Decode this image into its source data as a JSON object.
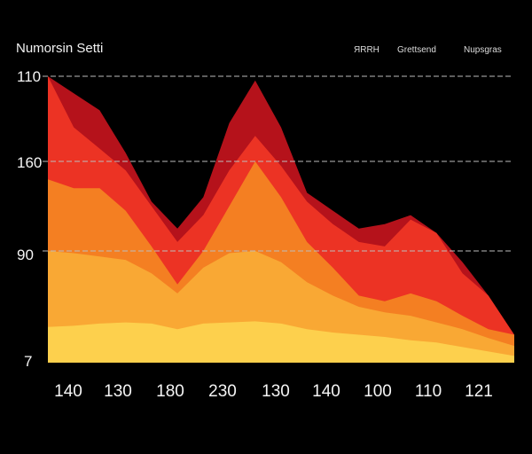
{
  "chart_data": {
    "type": "area",
    "title": "Numorsin Setti",
    "legend": {
      "placement": "top-right",
      "entries": [
        "ЯRRH",
        "Grettsend",
        "Nupsgras"
      ]
    },
    "y_ticks": [
      {
        "label": "110",
        "value": 3
      },
      {
        "label": "160",
        "value": 2
      },
      {
        "label": "90",
        "value": 1
      },
      {
        "label": "7",
        "value": 0
      }
    ],
    "ylim": [
      0,
      3.1
    ],
    "gridlines_at": [
      3,
      2,
      1
    ],
    "grid": true,
    "x_ticks": [
      "140",
      "130",
      "180",
      "230",
      "130",
      "140",
      "100",
      "110",
      "121"
    ],
    "x": [
      0,
      0.5,
      1,
      1.5,
      2,
      2.5,
      3,
      3.5,
      4,
      4.5,
      5,
      5.5,
      6,
      6.5,
      7,
      7.5,
      8,
      8.5,
      9
    ],
    "series": [
      {
        "color": "#b5121b",
        "values": [
          3.0,
          2.8,
          2.6,
          2.1,
          1.55,
          1.25,
          1.6,
          2.45,
          2.95,
          2.4,
          1.65,
          1.45,
          1.25,
          1.3,
          1.4,
          1.2,
          0.9,
          0.6,
          0.25
        ]
      },
      {
        "color": "#ec3324",
        "values": [
          3.0,
          2.4,
          2.15,
          1.9,
          1.5,
          1.1,
          1.4,
          1.9,
          2.3,
          1.95,
          1.55,
          1.3,
          1.1,
          1.05,
          1.35,
          1.2,
          0.8,
          0.6,
          0.25
        ]
      },
      {
        "color": "#f47f22",
        "values": [
          1.8,
          1.7,
          1.7,
          1.45,
          1.05,
          0.7,
          1.0,
          1.5,
          2.0,
          1.6,
          1.1,
          0.85,
          0.6,
          0.55,
          0.62,
          0.55,
          0.42,
          0.3,
          0.25
        ]
      },
      {
        "color": "#f9a834",
        "values": [
          1.0,
          0.98,
          0.95,
          0.92,
          0.8,
          0.62,
          0.85,
          0.98,
          1.0,
          0.9,
          0.72,
          0.6,
          0.5,
          0.45,
          0.42,
          0.36,
          0.3,
          0.22,
          0.15
        ]
      },
      {
        "color": "#fdd04d",
        "values": [
          0.32,
          0.33,
          0.35,
          0.36,
          0.35,
          0.3,
          0.35,
          0.36,
          0.37,
          0.35,
          0.3,
          0.27,
          0.25,
          0.23,
          0.2,
          0.18,
          0.14,
          0.1,
          0.06
        ]
      }
    ]
  }
}
